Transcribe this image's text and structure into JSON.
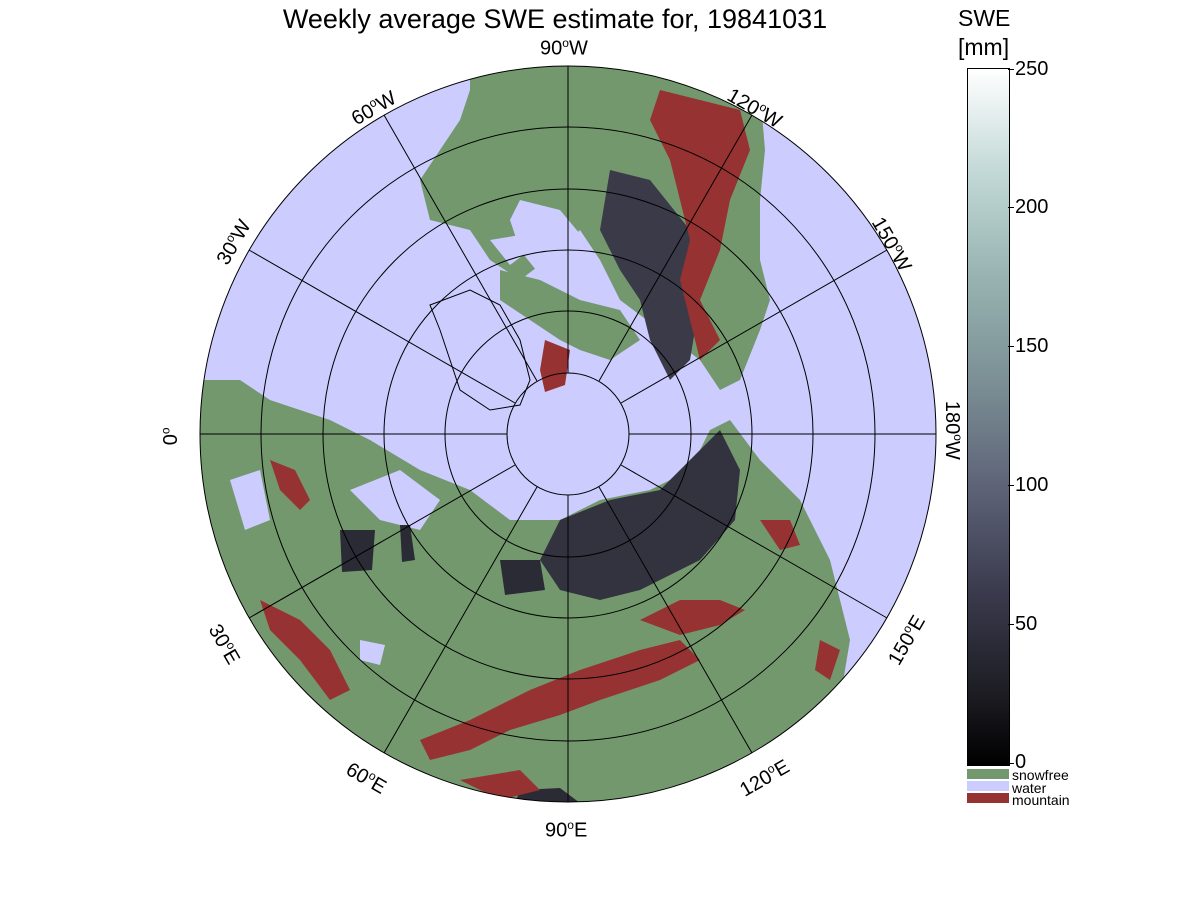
{
  "title": "Weekly average SWE estimate for, 19841031",
  "longitude_labels": {
    "w90": "90",
    "w90_unit": "W",
    "w120": "120",
    "w120_unit": "W",
    "w150": "150",
    "w150_unit": "W",
    "w180": "180",
    "w180_unit": "W",
    "w60": "60",
    "w60_unit": "W",
    "w30": "30",
    "w30_unit": "W",
    "zero": "0",
    "e30": "30",
    "e30_unit": "E",
    "e60": "60",
    "e60_unit": "E",
    "e90": "90",
    "e90_unit": "E",
    "e120": "120",
    "e120_unit": "E",
    "e150": "150",
    "e150_unit": "E"
  },
  "colorbar": {
    "title_line1": "SWE",
    "title_line2": "[mm]",
    "ticks": [
      "0",
      "50",
      "100",
      "150",
      "200",
      "250"
    ],
    "range": [
      0,
      250
    ],
    "categories": [
      {
        "label": "snowfree",
        "color": "#74986e"
      },
      {
        "label": "water",
        "color": "#ccccff"
      },
      {
        "label": "mountain",
        "color": "#963232"
      }
    ]
  },
  "colors": {
    "water": "#ccccff",
    "land": "#74986e",
    "mountain": "#963232",
    "snow_low": "#2e2e3a",
    "snow_mid": "#4a4a5e"
  }
}
